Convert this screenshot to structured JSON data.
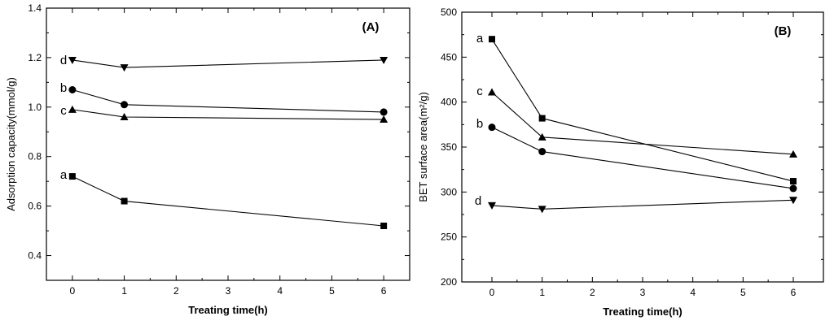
{
  "chart_data": [
    {
      "type": "line",
      "panel_label": "(A)",
      "xlabel": "Treating time(h)",
      "ylabel": "Adsorption capacity(mmol/g)",
      "xlim": [
        -0.5,
        6.5
      ],
      "ylim": [
        0.3,
        1.4
      ],
      "xticks": [
        0,
        1,
        2,
        3,
        4,
        5,
        6
      ],
      "yticks": [
        0.4,
        0.6,
        0.8,
        1.0,
        1.2,
        1.4
      ],
      "ytick_labels": [
        "0.4",
        "0.6",
        "0.8",
        "1.0",
        "1.2",
        "1.4"
      ],
      "series": [
        {
          "name": "a",
          "marker": "square",
          "x": [
            0,
            1,
            6
          ],
          "values": [
            0.72,
            0.62,
            0.52
          ]
        },
        {
          "name": "b",
          "marker": "circle",
          "x": [
            0,
            1,
            6
          ],
          "values": [
            1.07,
            1.01,
            0.98
          ]
        },
        {
          "name": "c",
          "marker": "triangle-up",
          "x": [
            0,
            1,
            6
          ],
          "values": [
            0.99,
            0.96,
            0.95
          ]
        },
        {
          "name": "d",
          "marker": "triangle-down",
          "x": [
            0,
            1,
            6
          ],
          "values": [
            1.19,
            1.16,
            1.19
          ]
        }
      ]
    },
    {
      "type": "line",
      "panel_label": "(B)",
      "xlabel": "Treating time(h)",
      "ylabel": "BET surface area(m²/g)",
      "xlim": [
        -0.6,
        6.6
      ],
      "ylim": [
        200,
        500
      ],
      "xticks": [
        0,
        1,
        2,
        3,
        4,
        5,
        6
      ],
      "yticks": [
        200,
        250,
        300,
        350,
        400,
        450,
        500
      ],
      "ytick_labels": [
        "200",
        "250",
        "300",
        "350",
        "400",
        "450",
        "500"
      ],
      "series": [
        {
          "name": "a",
          "marker": "square",
          "x": [
            0,
            1,
            6
          ],
          "values": [
            470,
            382,
            312
          ]
        },
        {
          "name": "b",
          "marker": "circle",
          "x": [
            0,
            1,
            6
          ],
          "values": [
            372,
            345,
            304
          ]
        },
        {
          "name": "c",
          "marker": "triangle-up",
          "x": [
            0,
            1,
            6
          ],
          "values": [
            411,
            361,
            342
          ]
        },
        {
          "name": "d",
          "marker": "triangle-down",
          "x": [
            0,
            1,
            6
          ],
          "values": [
            285,
            281,
            291
          ]
        }
      ]
    }
  ]
}
